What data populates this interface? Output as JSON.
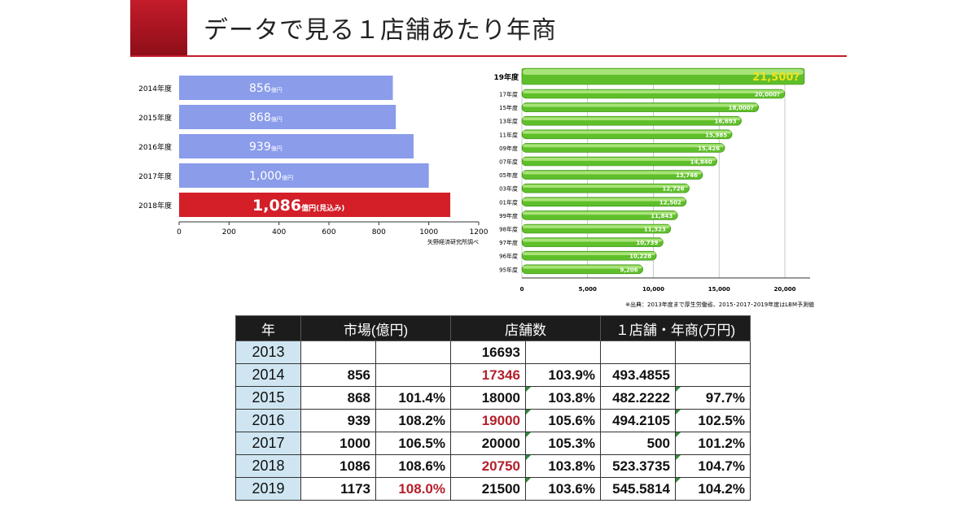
{
  "header": {
    "title": "データで見る１店舗あたり年商"
  },
  "chart_data": [
    {
      "type": "bar",
      "orientation": "horizontal",
      "categories": [
        "2014年度",
        "2015年度",
        "2016年度",
        "2017年度",
        "2018年度"
      ],
      "values": [
        856,
        868,
        939,
        1000,
        1086
      ],
      "value_labels": [
        "856",
        "868",
        "939",
        "1,000",
        "1,086"
      ],
      "unit_suffixes": [
        "億円",
        "億円",
        "億円",
        "億円",
        "億円(見込み)"
      ],
      "xlim": [
        0,
        1200
      ],
      "xticks": [
        "0",
        "200",
        "400",
        "600",
        "800",
        "1000",
        "1200"
      ],
      "source": "矢野経済研究所調べ",
      "colors": {
        "normal": "#8a9cea",
        "highlight": "#d41f28"
      },
      "highlight_index": 4
    },
    {
      "type": "bar",
      "orientation": "horizontal",
      "categories": [
        "19年度",
        "17年度",
        "15年度",
        "13年度",
        "11年度",
        "09年度",
        "07年度",
        "05年度",
        "03年度",
        "01年度",
        "99年度",
        "98年度",
        "97年度",
        "96年度",
        "95年度"
      ],
      "values": [
        21500,
        20000,
        18000,
        16693,
        15985,
        15426,
        14840,
        13746,
        12726,
        12502,
        11843,
        11323,
        10739,
        10228,
        9206
      ],
      "value_labels": [
        "21,500?",
        "20,000?",
        "18,000?",
        "16,693",
        "15,985",
        "15,426",
        "14,840",
        "13,746",
        "12,726",
        "12,502",
        "11,843",
        "11,323",
        "10,739",
        "10,228",
        "9,206"
      ],
      "xlim": [
        0,
        21500
      ],
      "xticks": [
        {
          "value": 0,
          "label": "0"
        },
        {
          "value": 5000,
          "label": "5,000"
        },
        {
          "value": 10000,
          "label": "10,000"
        },
        {
          "value": 15000,
          "label": "15,000"
        },
        {
          "value": 20000,
          "label": "20,000"
        }
      ],
      "source": "※出典：2013年度まで厚生労働省、2015･2017･2019年度はLBM予測値",
      "colors": {
        "bar": "#5fbf2a",
        "highlight_label": "#f2e21a"
      }
    }
  ],
  "table": {
    "headers": [
      "年",
      "市場(億円)",
      "店舗数",
      "１店舗・年商(万円)"
    ],
    "rows": [
      [
        "2013",
        "",
        "",
        "16693",
        "",
        "",
        ""
      ],
      [
        "2014",
        "856",
        "",
        "17346",
        "103.9%",
        "493.4855",
        ""
      ],
      [
        "2015",
        "868",
        "101.4%",
        "18000",
        "103.8%",
        "482.2222",
        "97.7%"
      ],
      [
        "2016",
        "939",
        "108.2%",
        "19000",
        "105.6%",
        "494.2105",
        "102.5%"
      ],
      [
        "2017",
        "1000",
        "106.5%",
        "20000",
        "105.3%",
        "500",
        "101.2%"
      ],
      [
        "2018",
        "1086",
        "108.6%",
        "20750",
        "103.8%",
        "523.3735",
        "104.7%"
      ],
      [
        "2019",
        "1173",
        "108.0%",
        "21500",
        "103.6%",
        "545.5814",
        "104.2%"
      ]
    ],
    "red_cells": [
      [
        1,
        3
      ],
      [
        3,
        3
      ],
      [
        5,
        3
      ],
      [
        6,
        2
      ]
    ],
    "mark_cells": [
      [
        2,
        4
      ],
      [
        3,
        4
      ],
      [
        4,
        4
      ],
      [
        5,
        4
      ],
      [
        6,
        4
      ],
      [
        2,
        6
      ],
      [
        3,
        6
      ],
      [
        4,
        6
      ],
      [
        5,
        6
      ],
      [
        6,
        6
      ]
    ]
  }
}
